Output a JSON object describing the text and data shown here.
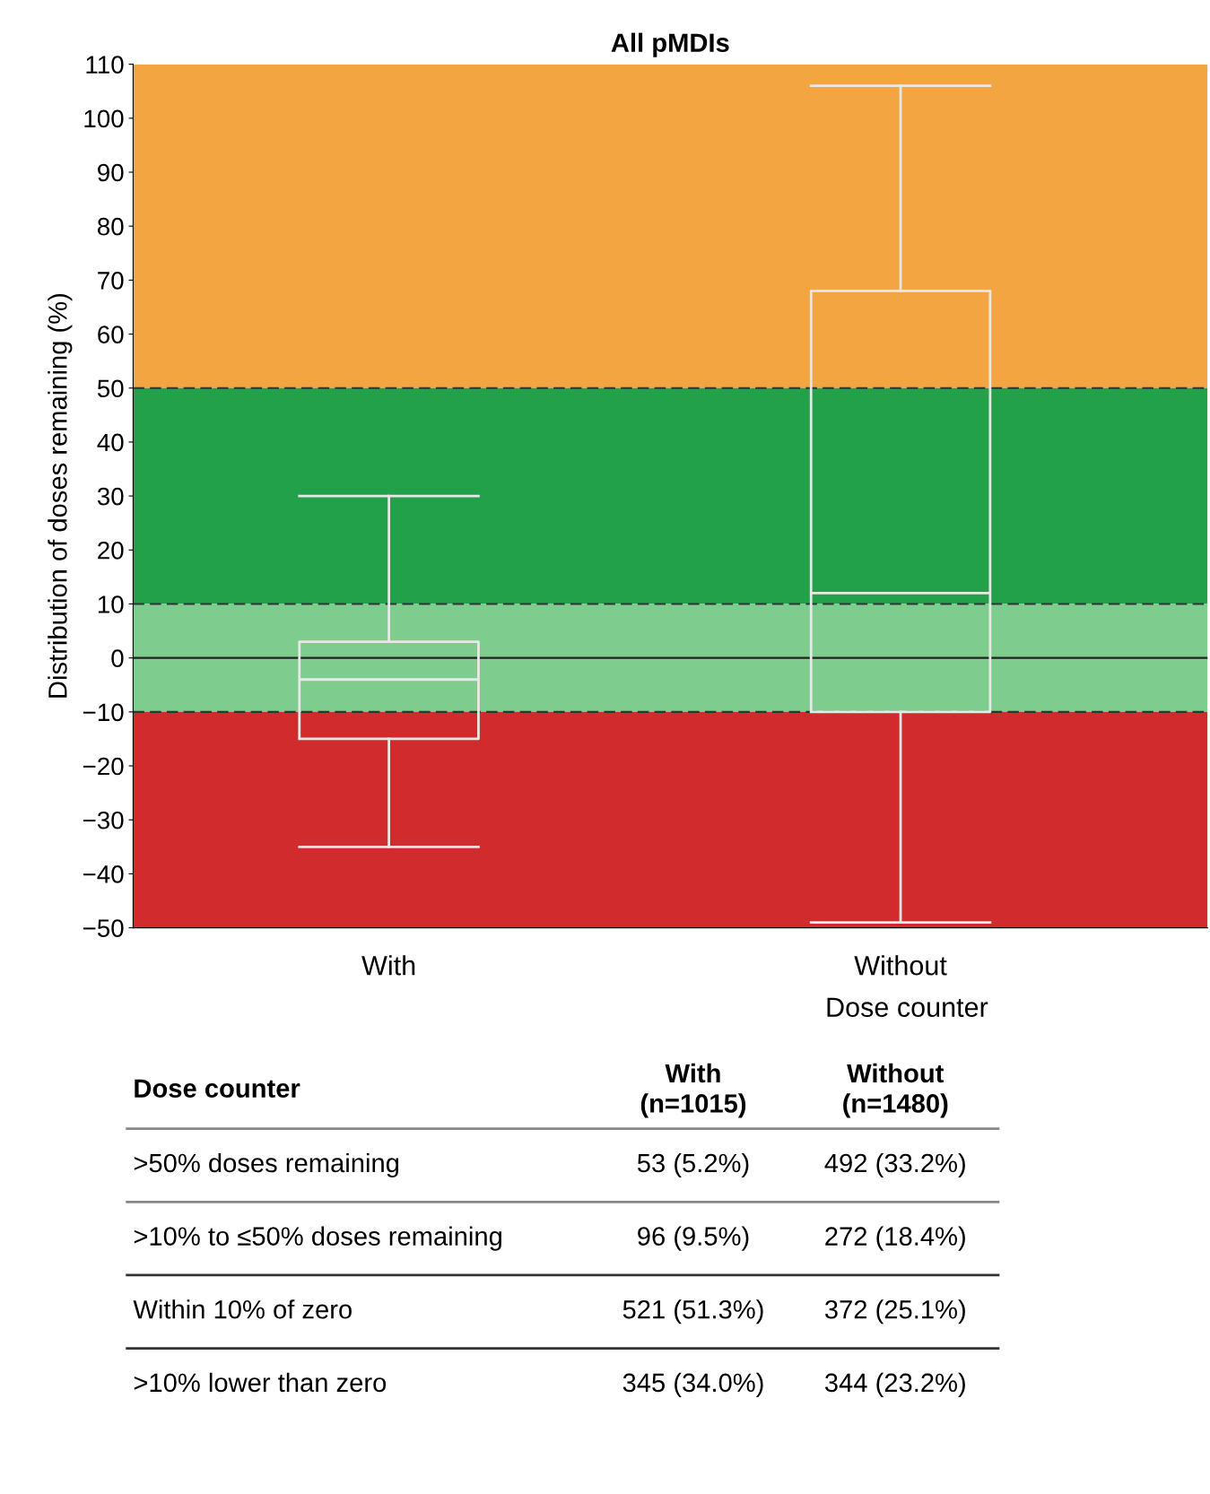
{
  "chart_data": {
    "type": "box",
    "title": "All pMDIs",
    "xlabel": "Dose counter",
    "ylabel": "Distribution of doses remaining (%)",
    "categories": [
      "With",
      "Without"
    ],
    "boxes": [
      {
        "low": -35,
        "q1": -15,
        "median": -4,
        "q3": 3,
        "high": 30
      },
      {
        "low": -49,
        "q1": -10,
        "median": 12,
        "q3": 68,
        "high": 106
      }
    ],
    "color": "#e8e8e8",
    "ylim": [
      -50,
      110
    ],
    "yticks": [
      -50,
      -40,
      -30,
      -20,
      -10,
      0,
      10,
      20,
      30,
      40,
      50,
      60,
      70,
      80,
      90,
      100,
      110
    ],
    "grid": false,
    "bands": [
      {
        "axis": "y",
        "from": 50,
        "to": 110,
        "color": "#f2a540"
      },
      {
        "axis": "y",
        "from": 10,
        "to": 50,
        "color": "#22a04a"
      },
      {
        "axis": "y",
        "from": -10,
        "to": 10,
        "color": "#7fcc8f"
      },
      {
        "axis": "y",
        "from": -50,
        "to": -10,
        "color": "#d22b2e"
      }
    ],
    "ref_lines": [
      {
        "axis": "y",
        "value": 50,
        "line_style": "dashed",
        "color": "#333333"
      },
      {
        "axis": "y",
        "value": 10,
        "line_style": "dashed",
        "color": "#333333"
      },
      {
        "axis": "y",
        "value": -10,
        "line_style": "dashed",
        "color": "#333333"
      },
      {
        "axis": "y",
        "value": 0,
        "line_style": "solid",
        "color": "#222222"
      }
    ],
    "annotations": [
      "Dose counter",
      "With\n(n=1015)",
      "Without\n(n=1480)",
      ">50% doses remaining",
      "53 (5.2%)",
      "492 (33.2%)",
      ">10% to ≤50% doses remaining",
      "96 (9.5%)",
      "272 (18.4%)",
      "Within 10% of zero",
      "521 (51.3%)",
      "372 (25.1%)",
      ">10% lower than zero",
      "345 (34.0%)",
      "344 (23.2%)"
    ]
  }
}
